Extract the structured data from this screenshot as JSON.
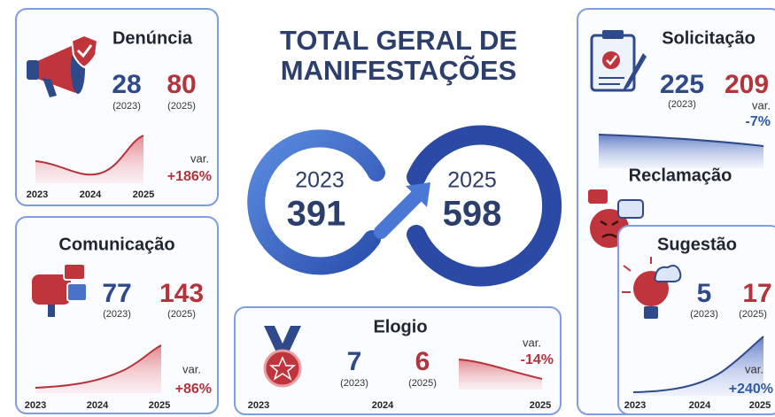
{
  "title": {
    "line1": "TOTAL GERAL DE",
    "line2": "MANIFESTAÇÕES"
  },
  "total": {
    "year_2023": "2023",
    "value_2023": 391,
    "year_2025": "2025",
    "value_2025": 598
  },
  "cards": {
    "denuncia": {
      "name": "Denúncia",
      "value_2023": 28,
      "label_2023": "(2023)",
      "value_2025": 80,
      "label_2025": "(2025)",
      "var_label": "var.",
      "var": "+186%",
      "axis": [
        "2023",
        "2024",
        "2025"
      ]
    },
    "comunicacao": {
      "name": "Comunicação",
      "value_2023": 77,
      "label_2023": "(2023)",
      "value_2025": 143,
      "label_2025": "(2025)",
      "var_label": "var.",
      "var": "+86%",
      "axis": [
        "2023",
        "2024",
        "2025"
      ]
    },
    "elogio": {
      "name": "Elogio",
      "value_2023": 7,
      "label_2023": "(2023)",
      "value_2025": 6,
      "label_2025": "(2025)",
      "var_label": "var.",
      "var": "-14%",
      "axis": [
        "2023",
        "2024",
        "2025"
      ]
    },
    "solicitacao": {
      "name": "Solicitação",
      "value_2023": 225,
      "label_2023": "(2023)",
      "value_2025": 209,
      "var_label": "var.",
      "var": "-7%"
    },
    "reclamacao": {
      "name": "Reclamação"
    },
    "sugestao": {
      "name": "Sugestão",
      "value_2023": 5,
      "label_2023": "(2023)",
      "value_2025": 17,
      "label_2025": "(2025)",
      "var_label": "var.",
      "var": "+240%",
      "axis": [
        "2023",
        "2024",
        "2025"
      ]
    }
  }
}
